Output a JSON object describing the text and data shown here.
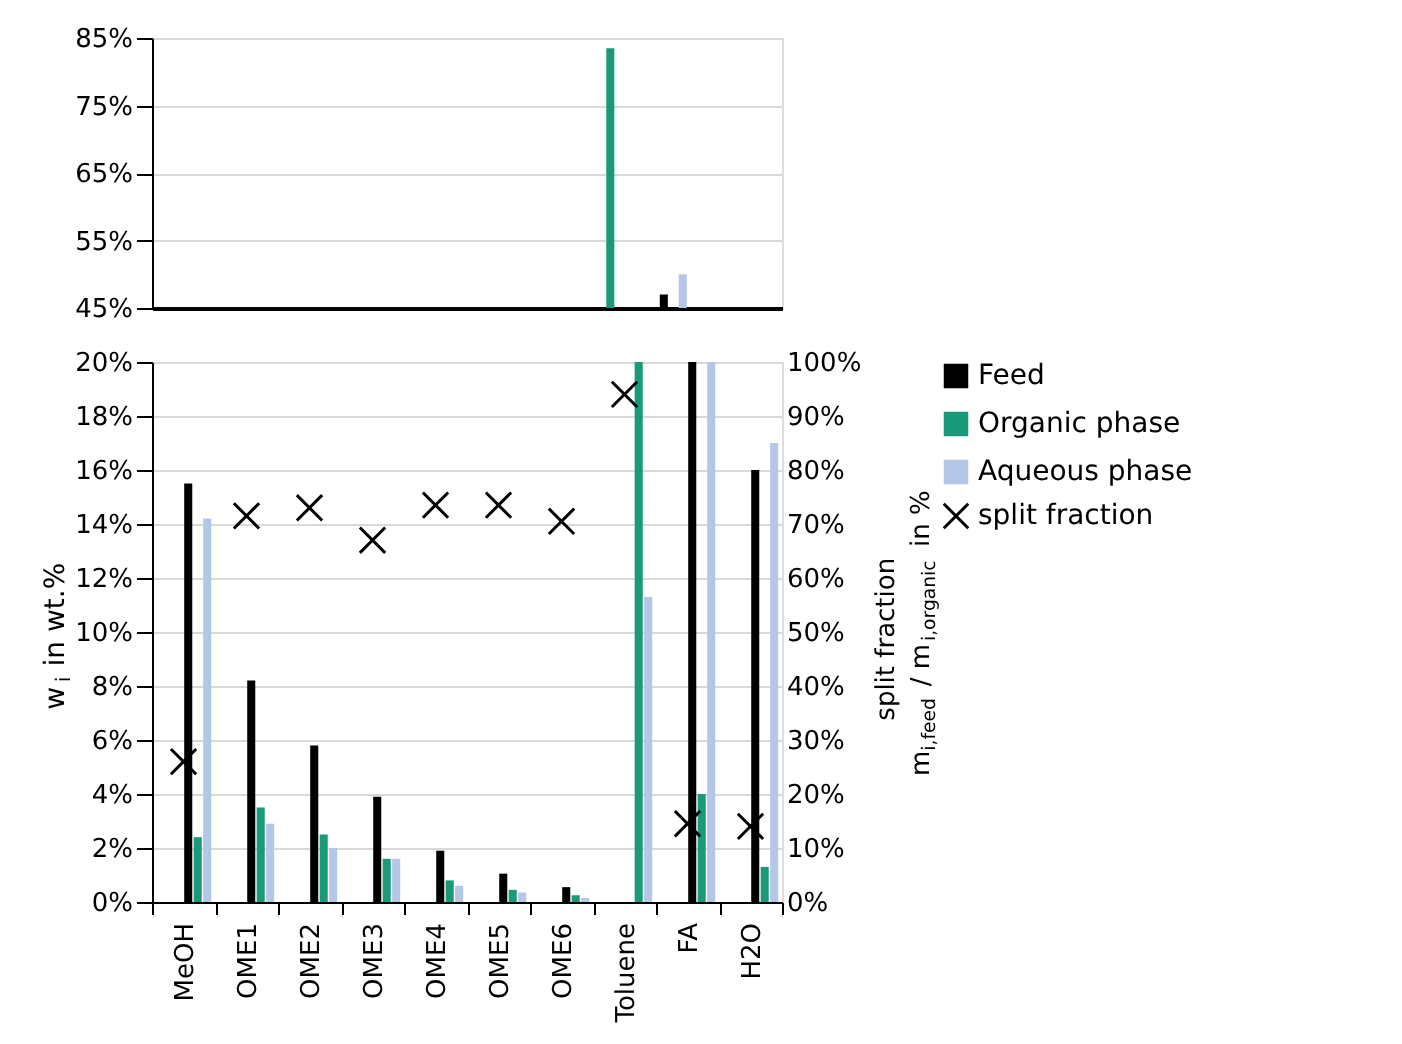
{
  "chart_data": [
    {
      "type": "bar",
      "categories": [
        null,
        null,
        null,
        null,
        null,
        null,
        null,
        null,
        null,
        null
      ],
      "series": [
        {
          "color": "#000000",
          "values": [
            null,
            null,
            null,
            null,
            null,
            null,
            null,
            null,
            47,
            null
          ]
        },
        {
          "color": "#1a9a78",
          "values": [
            null,
            null,
            null,
            null,
            null,
            null,
            null,
            83.5,
            null,
            null
          ]
        },
        {
          "color": "#b4c7e7",
          "values": [
            null,
            null,
            null,
            null,
            null,
            null,
            null,
            null,
            50,
            null
          ]
        }
      ],
      "ylim": [
        45,
        85
      ],
      "yticks": [
        {
          "value": 45,
          "label": "45%"
        },
        {
          "value": 55,
          "label": "55%"
        },
        {
          "value": 65,
          "label": "65%"
        },
        {
          "value": 75,
          "label": "75%"
        },
        {
          "value": 85,
          "label": "85%"
        }
      ],
      "grid": "y",
      "tick_labels": "y"
    },
    {
      "type": "bar",
      "categories": [
        "MeOH",
        "OME1",
        "OME2",
        "OME3",
        "OME4",
        "OME5",
        "OME6",
        "Toluene",
        "FA",
        "H2O"
      ],
      "ylabel": "w$_{i}$ in wt.%",
      "y2label": "split fraction m$_{i,feed}$ / m$_{i,organic}$ in %",
      "series": [
        {
          "name": "Feed",
          "color": "#000000",
          "values": [
            15.5,
            8.2,
            5.8,
            3.9,
            1.9,
            1.05,
            0.55,
            0,
            20,
            16.0
          ]
        },
        {
          "name": "Organic phase",
          "color": "#1a9a78",
          "values": [
            2.4,
            3.5,
            2.5,
            1.6,
            0.8,
            0.45,
            0.25,
            20,
            4.0,
            1.3
          ]
        },
        {
          "name": "Aqueous phase",
          "color": "#b4c7e7",
          "values": [
            14.2,
            2.9,
            2.0,
            1.6,
            0.6,
            0.35,
            0.15,
            11.3,
            20,
            17.0
          ]
        },
        {
          "name": "split fraction",
          "color": "#000000",
          "type": "scatter",
          "axis": "y2",
          "marker": "cross",
          "values": [
            26,
            71.5,
            73,
            67,
            73.5,
            73.5,
            70.5,
            94,
            14.5,
            14
          ]
        }
      ],
      "ylim": [
        0,
        20
      ],
      "yticks": [
        {
          "value": 0,
          "label": "0%"
        },
        {
          "value": 2,
          "label": "2%"
        },
        {
          "value": 4,
          "label": "4%"
        },
        {
          "value": 6,
          "label": "6%"
        },
        {
          "value": 8,
          "label": "8%"
        },
        {
          "value": 10,
          "label": "10%"
        },
        {
          "value": 12,
          "label": "12%"
        },
        {
          "value": 14,
          "label": "14%"
        },
        {
          "value": 16,
          "label": "16%"
        },
        {
          "value": 18,
          "label": "18%"
        },
        {
          "value": 20,
          "label": "20%"
        }
      ],
      "y2lim": [
        0,
        100
      ],
      "y2ticks": [
        {
          "value": 0,
          "label": "0%"
        },
        {
          "value": 10,
          "label": "10%"
        },
        {
          "value": 20,
          "label": "20%"
        },
        {
          "value": 30,
          "label": "30%"
        },
        {
          "value": 40,
          "label": "40%"
        },
        {
          "value": 50,
          "label": "50%"
        },
        {
          "value": 60,
          "label": "60%"
        },
        {
          "value": 70,
          "label": "70%"
        },
        {
          "value": 80,
          "label": "80%"
        },
        {
          "value": 90,
          "label": "90%"
        },
        {
          "value": 100,
          "label": "100%"
        }
      ],
      "grid": "y",
      "legend": "right"
    }
  ]
}
